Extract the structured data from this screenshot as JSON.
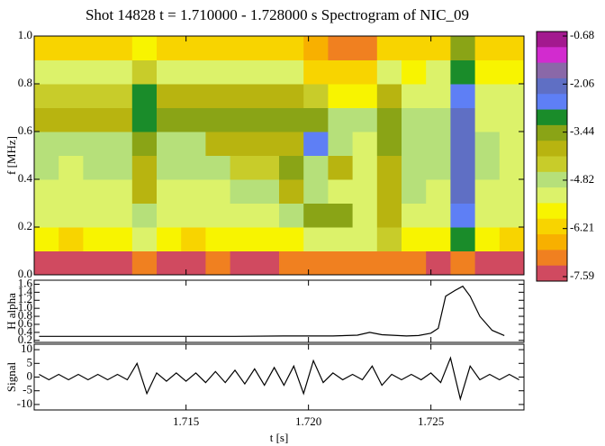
{
  "title": "Shot 14828  t = 1.710000 - 1.728000 s   Spectrogram of NIC_09",
  "chart_data": [
    {
      "type": "heatmap",
      "ylabel": "f [MHz]",
      "xlim": [
        1.7088,
        1.7288
      ],
      "ylim": [
        0,
        1
      ],
      "yticks": [
        {
          "value": 0,
          "label": "0.0"
        },
        0.2,
        0.4,
        0.6,
        0.8,
        {
          "value": 1,
          "label": "1.0"
        }
      ],
      "zlim": [
        -7.59,
        -0.68
      ],
      "colorbar_ticks": [
        -0.68,
        -2.06,
        -3.44,
        -4.82,
        -6.21,
        -7.59
      ],
      "colorscale": [
        "#a3198f",
        "#d22bcf",
        "#8a68a8",
        "#5f6fc4",
        "#5e7ff5",
        "#1a8c2a",
        "#8aa416",
        "#b8b410",
        "#c8cc2a",
        "#b6e07a",
        "#dcf26a",
        "#f8f400",
        "#f8d400",
        "#f8b000",
        "#f08020",
        "#d04a60"
      ],
      "x": [
        1.7093,
        1.7103,
        1.7113,
        1.7123,
        1.7133,
        1.7143,
        1.7153,
        1.7163,
        1.7173,
        1.7183,
        1.7193,
        1.7203,
        1.7213,
        1.7223,
        1.7233,
        1.7243,
        1.7253,
        1.7263,
        1.7273,
        1.7283
      ],
      "y": [
        0.05,
        0.15,
        0.25,
        0.35,
        0.45,
        0.55,
        0.65,
        0.75,
        0.85,
        0.95
      ],
      "z": [
        [
          -7.2,
          -7.2,
          -7.2,
          -7.2,
          -7.0,
          -7.2,
          -7.2,
          -7.0,
          -7.2,
          -7.2,
          -7.0,
          -6.8,
          -6.8,
          -6.9,
          -6.8,
          -7.0,
          -7.2,
          -6.8,
          -7.2,
          -7.2
        ],
        [
          -5.8,
          -5.9,
          -5.8,
          -5.8,
          -5.2,
          -5.8,
          -5.9,
          -5.8,
          -5.8,
          -5.6,
          -5.5,
          -5.2,
          -5.0,
          -5.0,
          -4.5,
          -5.6,
          -5.8,
          -3.0,
          -5.8,
          -5.9
        ],
        [
          -5.2,
          -5.3,
          -5.2,
          -5.2,
          -4.6,
          -5.2,
          -5.3,
          -5.2,
          -5.1,
          -5.0,
          -4.8,
          -3.6,
          -3.6,
          -5.0,
          -4.0,
          -5.0,
          -5.2,
          -2.5,
          -5.2,
          -5.4
        ],
        [
          -5.0,
          -5.1,
          -5.0,
          -5.0,
          -4.0,
          -5.0,
          -5.1,
          -5.0,
          -4.9,
          -4.7,
          -3.8,
          -4.8,
          -5.0,
          -5.1,
          -4.0,
          -4.8,
          -5.0,
          -2.3,
          -5.0,
          -5.2
        ],
        [
          -4.9,
          -5.0,
          -4.9,
          -4.9,
          -3.8,
          -4.9,
          -4.9,
          -4.8,
          -4.5,
          -4.5,
          -3.5,
          -4.6,
          -3.8,
          -5.0,
          -3.8,
          -4.8,
          -4.9,
          -2.2,
          -4.9,
          -5.1
        ],
        [
          -4.8,
          -4.9,
          -4.8,
          -4.8,
          -3.5,
          -4.7,
          -4.6,
          -4.0,
          -4.0,
          -4.0,
          -4.0,
          -2.8,
          -4.8,
          -5.0,
          -3.6,
          -4.7,
          -4.8,
          -2.2,
          -4.9,
          -5.0
        ],
        [
          -3.8,
          -3.8,
          -3.8,
          -3.8,
          -3.0,
          -3.6,
          -3.6,
          -3.6,
          -3.6,
          -3.6,
          -3.6,
          -3.3,
          -4.6,
          -4.6,
          -3.4,
          -4.8,
          -4.8,
          -2.2,
          -5.0,
          -5.1
        ],
        [
          -4.2,
          -4.2,
          -4.2,
          -4.2,
          -3.2,
          -4.0,
          -4.0,
          -4.0,
          -4.0,
          -4.0,
          -4.0,
          -4.4,
          -5.5,
          -5.5,
          -3.8,
          -5.0,
          -5.0,
          -2.5,
          -5.2,
          -5.2
        ],
        [
          -5.4,
          -5.4,
          -5.4,
          -5.4,
          -4.5,
          -5.0,
          -5.0,
          -5.0,
          -5.0,
          -5.0,
          -5.0,
          -6.2,
          -6.2,
          -6.2,
          -5.0,
          -5.8,
          -5.2,
          -3.0,
          -5.8,
          -5.8
        ],
        [
          -6.0,
          -6.0,
          -6.0,
          -6.0,
          -5.5,
          -6.0,
          -6.0,
          -6.0,
          -6.0,
          -6.0,
          -6.0,
          -6.4,
          -6.8,
          -6.8,
          -6.0,
          -6.2,
          -6.0,
          -3.5,
          -6.2,
          -6.2
        ]
      ]
    },
    {
      "type": "line",
      "ylabel": "H alpha",
      "color": "#000000",
      "xlim": [
        1.7088,
        1.7288
      ],
      "ylim": [
        0.15,
        1.7
      ],
      "yticks": [
        0.2,
        0.4,
        0.6,
        0.8,
        {
          "value": 1,
          "label": "1.0"
        },
        1.2,
        1.4,
        1.6
      ],
      "x": [
        1.709,
        1.711,
        1.713,
        1.715,
        1.717,
        1.719,
        1.72,
        1.721,
        1.722,
        1.7225,
        1.723,
        1.724,
        1.7245,
        1.725,
        1.7253,
        1.7256,
        1.726,
        1.7263,
        1.7266,
        1.727,
        1.7275,
        1.728
      ],
      "values": [
        0.3,
        0.3,
        0.3,
        0.3,
        0.3,
        0.31,
        0.31,
        0.31,
        0.33,
        0.4,
        0.34,
        0.31,
        0.32,
        0.38,
        0.5,
        1.3,
        1.45,
        1.55,
        1.3,
        0.8,
        0.45,
        0.32
      ]
    },
    {
      "type": "line",
      "ylabel": "Signal",
      "xlabel": "t [s]",
      "color": "#000000",
      "xlim": [
        1.7088,
        1.7288
      ],
      "ylim": [
        -12,
        12
      ],
      "yticks": [
        -10,
        -5,
        0,
        5,
        10
      ],
      "xticks": [
        1.715,
        {
          "value": 1.72,
          "label": "1.720"
        },
        1.725
      ],
      "x": [
        1.709,
        1.7094,
        1.7098,
        1.7102,
        1.7106,
        1.711,
        1.7114,
        1.7118,
        1.7122,
        1.7126,
        1.713,
        1.7134,
        1.7138,
        1.7142,
        1.7146,
        1.715,
        1.7154,
        1.7158,
        1.7162,
        1.7166,
        1.717,
        1.7174,
        1.7178,
        1.7182,
        1.7186,
        1.719,
        1.7194,
        1.7198,
        1.7202,
        1.7206,
        1.721,
        1.7214,
        1.7218,
        1.7222,
        1.7226,
        1.723,
        1.7234,
        1.7238,
        1.7242,
        1.7246,
        1.725,
        1.7254,
        1.7258,
        1.7262,
        1.7266,
        1.727,
        1.7274,
        1.7278,
        1.7282,
        1.7286
      ],
      "values": [
        1,
        -1,
        1,
        -1,
        1,
        -1,
        1,
        -1,
        1,
        -1,
        5,
        -6,
        1.5,
        -1.5,
        1.5,
        -1.5,
        1.5,
        -2,
        2,
        -2,
        2.5,
        -2.5,
        3,
        -3,
        3.5,
        -3,
        4,
        -6,
        6,
        -2,
        1.5,
        -1,
        1,
        -1,
        4,
        -3,
        1,
        -1,
        1,
        -1,
        1.5,
        -2,
        7,
        -8,
        4,
        -1,
        1,
        -1,
        1,
        -1
      ]
    }
  ]
}
